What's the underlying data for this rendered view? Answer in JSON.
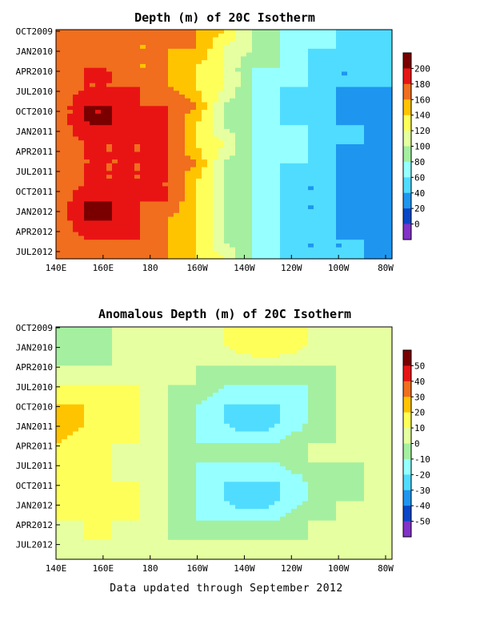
{
  "footer": "Data updated through September 2012",
  "chart_data": [
    {
      "type": "heatmap",
      "title": "Depth (m) of 20C Isotherm",
      "x_ticks": [
        "140E",
        "160E",
        "180",
        "160W",
        "140W",
        "120W",
        "100W",
        "80W"
      ],
      "y_ticks": [
        "OCT2009",
        "JAN2010",
        "APR2010",
        "JUL2010",
        "OCT2010",
        "JAN2011",
        "APR2011",
        "JUL2011",
        "OCT2011",
        "JAN2012",
        "APR2012",
        "JUL2012"
      ],
      "colorbar": {
        "labels": [
          "200",
          "180",
          "160",
          "140",
          "120",
          "100",
          "80",
          "60",
          "40",
          "20",
          "0"
        ],
        "colors": [
          "#7a0000",
          "#e81414",
          "#f06e1e",
          "#ffc400",
          "#ffff5a",
          "#e6ffa0",
          "#a4f0a0",
          "#96ffff",
          "#50dcff",
          "#1e96f0",
          "#0a46c8",
          "#8232c8"
        ]
      },
      "columns": [
        [
          160,
          160,
          160,
          160,
          160,
          160,
          160,
          160,
          160,
          160,
          160,
          160,
          160
        ],
        [
          160,
          160,
          180,
          180,
          200,
          200,
          180,
          180,
          180,
          200,
          200,
          180,
          180
        ],
        [
          160,
          160,
          180,
          180,
          200,
          200,
          180,
          180,
          180,
          200,
          200,
          180,
          160
        ],
        [
          160,
          160,
          160,
          180,
          180,
          180,
          180,
          180,
          180,
          180,
          180,
          180,
          160
        ],
        [
          160,
          160,
          160,
          160,
          180,
          180,
          180,
          180,
          180,
          180,
          160,
          160,
          160
        ],
        [
          160,
          160,
          140,
          140,
          160,
          140,
          140,
          160,
          140,
          140,
          140,
          140,
          140
        ],
        [
          140,
          120,
          120,
          120,
          100,
          100,
          120,
          100,
          100,
          100,
          100,
          100,
          120
        ],
        [
          100,
          100,
          80,
          80,
          80,
          80,
          80,
          80,
          80,
          80,
          80,
          80,
          80
        ],
        [
          80,
          80,
          80,
          60,
          60,
          60,
          60,
          60,
          60,
          60,
          60,
          60,
          60
        ],
        [
          80,
          60,
          60,
          60,
          40,
          60,
          60,
          60,
          40,
          40,
          40,
          40,
          40
        ],
        [
          60,
          60,
          40,
          40,
          40,
          40,
          40,
          40,
          40,
          40,
          40,
          40,
          40
        ],
        [
          60,
          40,
          40,
          40,
          20,
          40,
          40,
          20,
          20,
          20,
          20,
          40,
          40
        ],
        [
          60,
          40,
          40,
          40,
          20,
          20,
          20,
          40,
          20,
          20,
          20,
          20,
          40
        ]
      ]
    },
    {
      "type": "heatmap",
      "title": "Anomalous Depth (m) of 20C Isotherm",
      "x_ticks": [
        "140E",
        "160E",
        "180",
        "160W",
        "140W",
        "120W",
        "100W",
        "80W"
      ],
      "y_ticks": [
        "OCT2009",
        "JAN2010",
        "APR2010",
        "JUL2010",
        "OCT2010",
        "JAN2011",
        "APR2011",
        "JUL2011",
        "OCT2011",
        "JAN2012",
        "APR2012",
        "JUL2012"
      ],
      "colorbar": {
        "labels": [
          "50",
          "40",
          "30",
          "20",
          "10",
          "0",
          "-10",
          "-20",
          "-30",
          "-40",
          "-50"
        ],
        "colors": [
          "#7a0000",
          "#e81414",
          "#f06e1e",
          "#ffc400",
          "#ffff5a",
          "#e6ffa0",
          "#a4f0a0",
          "#96ffff",
          "#50dcff",
          "#1e96f0",
          "#0a46c8",
          "#8232c8"
        ]
      },
      "columns": [
        [
          0,
          0,
          0,
          10,
          20,
          30,
          20,
          10,
          10,
          20,
          10,
          0,
          0
        ],
        [
          0,
          -10,
          0,
          10,
          20,
          20,
          10,
          10,
          10,
          20,
          10,
          10,
          0
        ],
        [
          0,
          0,
          0,
          10,
          10,
          10,
          10,
          10,
          10,
          20,
          10,
          10,
          0
        ],
        [
          0,
          0,
          0,
          10,
          10,
          10,
          10,
          0,
          10,
          10,
          10,
          0,
          0
        ],
        [
          0,
          10,
          0,
          0,
          0,
          0,
          0,
          0,
          0,
          0,
          0,
          0,
          0
        ],
        [
          0,
          10,
          0,
          0,
          -10,
          -10,
          -10,
          -10,
          -10,
          -10,
          -10,
          0,
          0
        ],
        [
          10,
          10,
          0,
          -10,
          -20,
          -20,
          -10,
          -10,
          -20,
          -20,
          -10,
          0,
          0
        ],
        [
          10,
          20,
          0,
          -10,
          -20,
          -30,
          -10,
          -10,
          -20,
          -30,
          -10,
          0,
          0
        ],
        [
          10,
          20,
          0,
          -10,
          -20,
          -20,
          -10,
          -10,
          -20,
          -20,
          -10,
          0,
          10
        ],
        [
          10,
          10,
          0,
          -10,
          -10,
          -10,
          0,
          0,
          -10,
          -10,
          0,
          0,
          10
        ],
        [
          10,
          0,
          0,
          0,
          0,
          0,
          0,
          0,
          -10,
          0,
          0,
          0,
          10
        ],
        [
          10,
          0,
          0,
          0,
          0,
          0,
          0,
          0,
          0,
          0,
          0,
          0,
          10
        ],
        [
          10,
          0,
          0,
          0,
          0,
          0,
          0,
          0,
          0,
          0,
          0,
          10,
          10
        ]
      ]
    }
  ]
}
